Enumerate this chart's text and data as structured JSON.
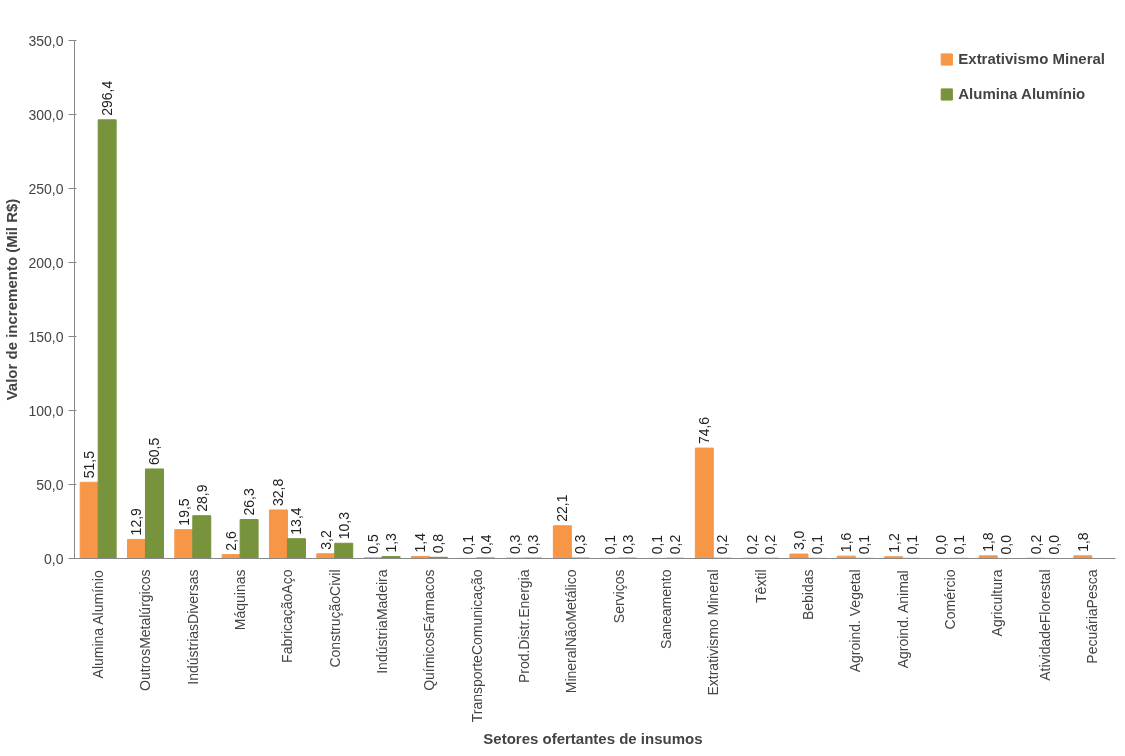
{
  "chart_data": {
    "type": "bar",
    "xlabel": "Setores  ofertantes de insumos",
    "ylabel": "Valor de incremento (Mil R$)",
    "categories": [
      "Alumina Alumínio",
      "OutrosMetalúrgicos",
      "IndústriasDiversas",
      "Máquinas",
      "FabricaçãoAço",
      "ConstruçãoCivil",
      "IndústriaMadeira",
      "QuímicosFármacos",
      "TransporteComunicação",
      "Prod.Distr.Energia",
      "MineralNãoMetálico",
      "Serviços",
      "Saneamento",
      "Extrativismo Mineral",
      "Têxtil",
      "Bebidas",
      "Agroind. Vegetal",
      "Agroind. Animal",
      "Comércio",
      "Agricultura",
      "AtividadeFlorestal",
      "PecuáriaPesca"
    ],
    "series": [
      {
        "name": "Extrativismo Mineral",
        "color": "#f79646",
        "values": [
          51.5,
          12.9,
          19.5,
          2.6,
          32.8,
          3.2,
          0.5,
          1.4,
          0.1,
          0.3,
          22.1,
          0.1,
          0.1,
          74.6,
          0.2,
          3.0,
          1.6,
          1.2,
          0.0,
          1.8,
          0.2,
          1.8
        ],
        "value_labels": [
          "51,5",
          "12,9",
          "19,5",
          "2,6",
          "32,8",
          "3,2",
          "0,5",
          "1,4",
          "0,1",
          "0,3",
          "22,1",
          "0,1",
          "0,1",
          "74,6",
          "0,2",
          "3,0",
          "1,6",
          "1,2",
          "0,0",
          "1,8",
          "0,2",
          "1,8"
        ]
      },
      {
        "name": "Alumina Alumínio",
        "color": "#77933c",
        "values": [
          296.4,
          60.5,
          28.9,
          26.3,
          13.4,
          10.3,
          1.3,
          0.8,
          0.4,
          0.3,
          0.3,
          0.3,
          0.2,
          0.2,
          0.2,
          0.1,
          0.1,
          0.1,
          0.1,
          0.0,
          0.0,
          0.0
        ],
        "value_labels": [
          "296,4",
          "60,5",
          "28,9",
          "26,3",
          "13,4",
          "10,3",
          "1,3",
          "0,8",
          "0,4",
          "0,3",
          "0,3",
          "0,3",
          "0,2",
          "0,2",
          "0,2",
          "0,1",
          "0,1",
          "0,1",
          "0,1",
          "0,0",
          "0,0",
          null
        ]
      }
    ],
    "ylim": [
      0,
      350
    ],
    "yticks": [
      {
        "value": 0,
        "label": "0,0"
      },
      {
        "value": 50,
        "label": "50,0"
      },
      {
        "value": 100,
        "label": "100,0"
      },
      {
        "value": 150,
        "label": "150,0"
      },
      {
        "value": 200,
        "label": "200,0"
      },
      {
        "value": 250,
        "label": "250,0"
      },
      {
        "value": 300,
        "label": "300,0"
      },
      {
        "value": 350,
        "label": "350,0"
      }
    ],
    "grid": false,
    "legend": "top right"
  }
}
